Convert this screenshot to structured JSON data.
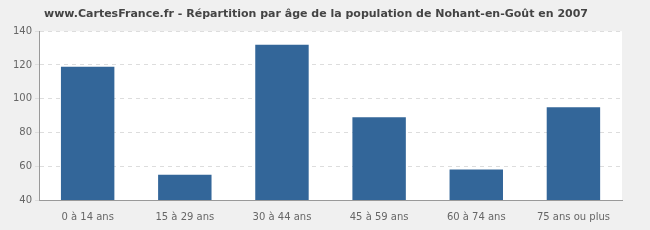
{
  "chart_data": {
    "type": "bar",
    "title": "www.CartesFrance.fr - Répartition par âge de la population de Nohant-en-Goût en 2007",
    "categories": [
      "0 à 14 ans",
      "15 à 29 ans",
      "30 à 44 ans",
      "45 à 59 ans",
      "60 à 74 ans",
      "75 ans ou plus"
    ],
    "values": [
      119,
      55,
      132,
      89,
      58,
      95
    ],
    "color": "#336699",
    "ylim": [
      40,
      140
    ],
    "yticks": [
      40,
      60,
      80,
      100,
      120,
      140
    ],
    "grid": true
  }
}
